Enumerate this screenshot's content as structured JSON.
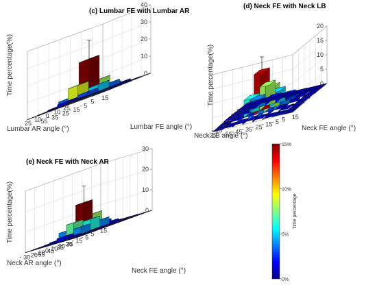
{
  "chart_data": [
    {
      "type": "bar3d",
      "panel": "c",
      "title": "(c) Lumbar FE with Lumbar AR",
      "zlabel": "Time percentage(%)",
      "xlabel": "Lumbar AR angle (°)",
      "ylabel": "Lumbar FE angle (°)",
      "x_ticks": [
        "25",
        "10",
        "0",
        "10",
        "25"
      ],
      "y_ticks": [
        "15",
        "5",
        "- 5",
        "- 15",
        "- 25",
        "- 35",
        "- 55"
      ],
      "z_ticks": [
        "0",
        "10",
        "20",
        "30",
        "40"
      ],
      "zlim": [
        0,
        40
      ],
      "x_bins": [
        "25",
        "10",
        "0",
        "-10",
        "-25"
      ],
      "y_bins": [
        "15",
        "5",
        "-5",
        "-15",
        "-25",
        "-35",
        "-55"
      ],
      "values": [
        [
          0.2,
          0.3,
          0.5,
          0.8,
          0.6,
          0.4,
          0.2
        ],
        [
          0.3,
          1.0,
          3.0,
          5.0,
          3.5,
          1.5,
          0.5
        ],
        [
          0.4,
          2.0,
          9.0,
          22.0,
          8.0,
          2.5,
          0.6
        ],
        [
          0.3,
          1.0,
          3.5,
          6.0,
          4.0,
          1.5,
          0.4
        ],
        [
          0.2,
          0.4,
          0.8,
          1.0,
          0.7,
          0.4,
          0.2
        ]
      ],
      "max_error_bar": 33
    },
    {
      "type": "bar3d",
      "panel": "d",
      "title": "(d) Neck FE with Neck LB",
      "zlabel": "Time percentage(%)",
      "xlabel": "Neck LB angle (°)",
      "ylabel": "Neck FE angle (°)",
      "x_ticks": [
        "25",
        "15",
        "5",
        "- 5",
        "- 15",
        "- 25"
      ],
      "y_ticks": [
        "15",
        "5",
        "- 5",
        "- 15",
        "- 25",
        "- 35",
        "- 45",
        "- 55"
      ],
      "z_ticks": [
        "0",
        "5",
        "10",
        "15",
        "20"
      ],
      "zlim": [
        0,
        20
      ],
      "x_bins": [
        "25",
        "15",
        "5",
        "-5",
        "-15",
        "-25"
      ],
      "y_bins": [
        "15",
        "5",
        "-5",
        "-15",
        "-25",
        "-35",
        "-45",
        "-55"
      ],
      "values": [
        [
          0.1,
          0.2,
          0.3,
          0.4,
          0.3,
          0.2,
          0.1,
          0.1
        ],
        [
          0.2,
          0.6,
          1.5,
          2.0,
          1.6,
          1.0,
          0.4,
          0.2
        ],
        [
          0.3,
          1.5,
          4.0,
          8.0,
          5.0,
          3.0,
          1.0,
          0.3
        ],
        [
          0.4,
          2.0,
          6.0,
          14.0,
          8.0,
          4.0,
          1.2,
          0.3
        ],
        [
          0.2,
          0.8,
          2.5,
          4.0,
          3.0,
          1.5,
          0.5,
          0.2
        ],
        [
          0.1,
          0.3,
          0.6,
          0.8,
          0.6,
          0.3,
          0.2,
          0.1
        ]
      ],
      "max_error_bar": 19
    },
    {
      "type": "bar3d",
      "panel": "e",
      "title": "(e) Neck FE with Neck AR",
      "zlabel": "Time percentage(%)",
      "xlabel": "Neck AR angle (°)",
      "ylabel": "Neck FE angle (°)",
      "x_ticks": [
        "30",
        "20",
        "10",
        "0",
        "- 10",
        "- 20",
        "- 30"
      ],
      "y_ticks": [
        "15",
        "5",
        "- 5",
        "- 15",
        "- 25",
        "- 35",
        "- 45",
        "- 55"
      ],
      "z_ticks": [
        "0",
        "10",
        "20",
        "30"
      ],
      "zlim": [
        0,
        30
      ],
      "x_bins": [
        "30",
        "20",
        "10",
        "0",
        "-10",
        "-20",
        "-30"
      ],
      "y_bins": [
        "15",
        "5",
        "-5",
        "-15",
        "-25",
        "-35",
        "-45",
        "-55"
      ],
      "values": [
        [
          0.1,
          0.1,
          0.2,
          0.2,
          0.2,
          0.1,
          0.1,
          0.1
        ],
        [
          0.1,
          0.3,
          0.6,
          0.8,
          0.6,
          0.3,
          0.2,
          0.1
        ],
        [
          0.2,
          1.0,
          4.0,
          6.0,
          4.0,
          1.5,
          0.4,
          0.2
        ],
        [
          0.3,
          2.0,
          7.0,
          15.0,
          8.0,
          2.5,
          0.6,
          0.2
        ],
        [
          0.2,
          1.0,
          4.0,
          6.0,
          4.0,
          1.5,
          0.4,
          0.2
        ],
        [
          0.1,
          0.3,
          0.6,
          0.8,
          0.6,
          0.3,
          0.2,
          0.1
        ],
        [
          0.1,
          0.1,
          0.2,
          0.2,
          0.2,
          0.1,
          0.1,
          0.1
        ]
      ],
      "max_error_bar": 23
    }
  ],
  "colorbar": {
    "label": "Time percentage",
    "ticks": [
      "15%",
      "10%",
      "5%",
      "0%"
    ],
    "range": [
      0,
      15
    ],
    "colormap": [
      "#00008f",
      "#0000ff",
      "#0080ff",
      "#00ffff",
      "#80ff80",
      "#ffff00",
      "#ff8000",
      "#ff0000",
      "#800000"
    ]
  }
}
